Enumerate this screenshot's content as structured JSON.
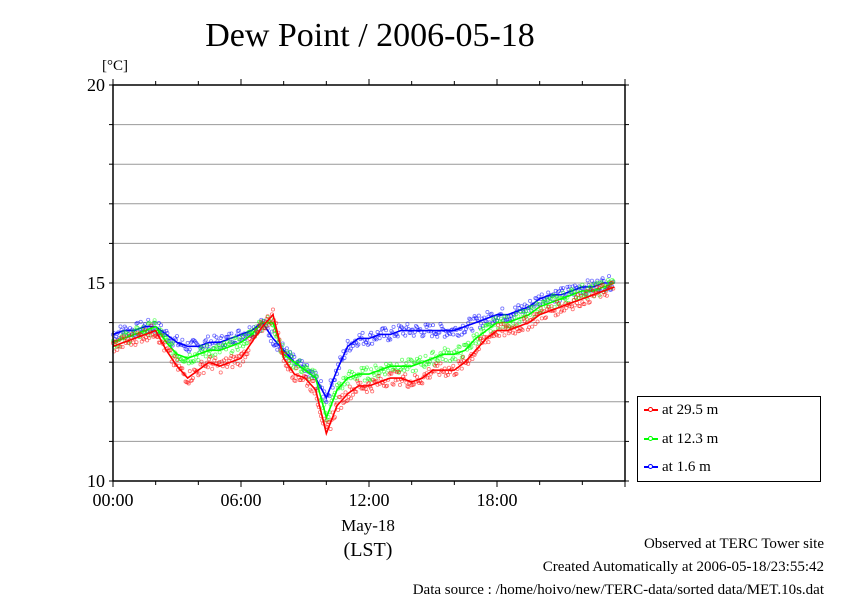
{
  "chart_data": {
    "type": "line",
    "title": "Dew Point / 2006-05-18",
    "ylabel": "[°C]",
    "ylim": [
      10,
      20
    ],
    "y_ticks": [
      10,
      15,
      20
    ],
    "xlim": [
      "00:00",
      "24:00"
    ],
    "x_ticks": [
      "00:00",
      "06:00",
      "12:00",
      "18:00"
    ],
    "x_date_label": "May-18",
    "x_unit_label": "(LST)",
    "grid": true,
    "legend_position": "right",
    "x": [
      "00:00",
      "00:30",
      "01:00",
      "01:30",
      "02:00",
      "02:30",
      "03:00",
      "03:30",
      "04:00",
      "04:30",
      "05:00",
      "05:30",
      "06:00",
      "06:30",
      "07:00",
      "07:30",
      "08:00",
      "08:30",
      "09:00",
      "09:30",
      "10:00",
      "10:30",
      "11:00",
      "11:30",
      "12:00",
      "12:30",
      "13:00",
      "13:30",
      "14:00",
      "14:30",
      "15:00",
      "15:30",
      "16:00",
      "16:30",
      "17:00",
      "17:30",
      "18:00",
      "18:30",
      "19:00",
      "19:30",
      "20:00",
      "20:30",
      "21:00",
      "21:30",
      "22:00",
      "22:30",
      "23:00",
      "23:30"
    ],
    "series": [
      {
        "name": "at 29.5 m",
        "color": "#ff0000",
        "values": [
          13.4,
          13.5,
          13.6,
          13.7,
          13.8,
          13.3,
          12.9,
          12.6,
          12.8,
          13.0,
          12.9,
          13.0,
          13.1,
          13.5,
          13.9,
          14.2,
          13.1,
          12.7,
          12.6,
          12.3,
          11.2,
          11.9,
          12.2,
          12.4,
          12.4,
          12.5,
          12.6,
          12.6,
          12.5,
          12.6,
          12.8,
          12.8,
          12.8,
          13.0,
          13.3,
          13.6,
          13.8,
          13.8,
          13.9,
          14.0,
          14.2,
          14.3,
          14.4,
          14.5,
          14.6,
          14.7,
          14.8,
          14.9
        ]
      },
      {
        "name": "at 12.3 m",
        "color": "#00ff00",
        "values": [
          13.5,
          13.6,
          13.7,
          13.8,
          13.9,
          13.5,
          13.2,
          13.1,
          13.2,
          13.3,
          13.3,
          13.4,
          13.5,
          13.7,
          14.0,
          14.0,
          13.2,
          13.0,
          12.8,
          12.6,
          11.6,
          12.3,
          12.6,
          12.7,
          12.7,
          12.8,
          12.9,
          12.9,
          12.9,
          13.0,
          13.1,
          13.2,
          13.2,
          13.3,
          13.6,
          13.8,
          14.0,
          14.0,
          14.1,
          14.2,
          14.4,
          14.5,
          14.6,
          14.7,
          14.8,
          14.8,
          14.9,
          15.0
        ]
      },
      {
        "name": "at 1.6 m",
        "color": "#0000ff",
        "values": [
          13.7,
          13.8,
          13.8,
          13.9,
          13.9,
          13.7,
          13.5,
          13.4,
          13.4,
          13.5,
          13.5,
          13.6,
          13.7,
          13.8,
          14.0,
          13.6,
          13.3,
          13.0,
          12.8,
          12.6,
          12.1,
          12.8,
          13.4,
          13.6,
          13.6,
          13.7,
          13.7,
          13.8,
          13.8,
          13.8,
          13.8,
          13.8,
          13.8,
          13.9,
          14.0,
          14.1,
          14.2,
          14.2,
          14.3,
          14.4,
          14.6,
          14.7,
          14.7,
          14.8,
          14.9,
          14.9,
          15.0,
          15.0
        ]
      }
    ]
  },
  "footer": {
    "line1": "Observed at TERC Tower site",
    "line2": "Created Automatically at 2006-05-18/23:55:42",
    "line3": "Data source : /home/hoivo/new/TERC-data/sorted  data/MET.10s.dat"
  }
}
